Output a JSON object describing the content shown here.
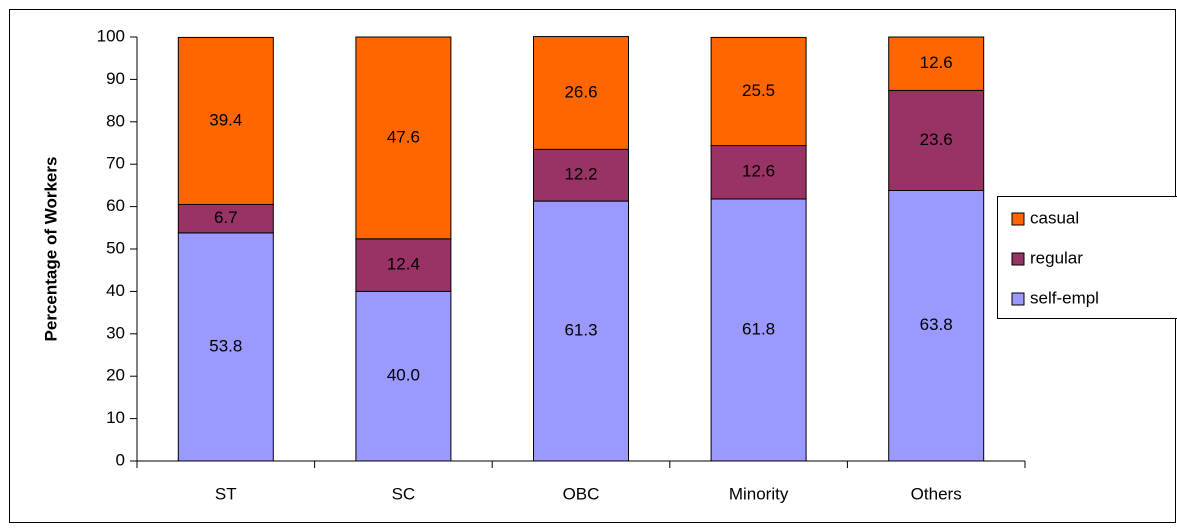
{
  "chart_data": {
    "type": "stacked-bar",
    "y_label": "Percentage of Workers",
    "categories": [
      "ST",
      "SC",
      "OBC",
      "Minority",
      "Others"
    ],
    "series": [
      {
        "name": "self-empl",
        "color": "#9999ff",
        "values": [
          53.8,
          40.0,
          61.3,
          61.8,
          63.8
        ],
        "value_labels": [
          "53.8",
          "40.0",
          "61.3",
          "61.8",
          "63.8"
        ]
      },
      {
        "name": "regular",
        "color": "#993366",
        "values": [
          6.7,
          12.4,
          12.2,
          12.6,
          23.6
        ]
      },
      {
        "name": "casual",
        "color": "#ff6600",
        "values": [
          39.4,
          47.6,
          26.6,
          25.5,
          12.6
        ]
      }
    ],
    "ylim": [
      0,
      100
    ],
    "yticks": [
      0,
      10,
      20,
      30,
      40,
      50,
      60,
      70,
      80,
      90,
      100
    ],
    "legend": "right"
  }
}
